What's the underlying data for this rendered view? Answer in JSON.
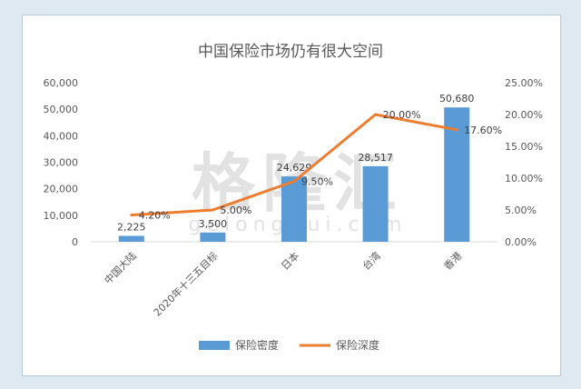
{
  "chart_data": {
    "type": "bar",
    "title": "中国保险市场仍有很大空间",
    "categories": [
      "中国大陆",
      "2020年十三五目标",
      "日本",
      "台湾",
      "香港"
    ],
    "series": [
      {
        "name": "保险密度",
        "type": "bar",
        "axis": "left",
        "values": [
          2225,
          3500,
          24629,
          28517,
          50680
        ],
        "labels": [
          "2,225",
          "3,500",
          "24,629",
          "28,517",
          "50,680"
        ],
        "color": "#5b9bd5"
      },
      {
        "name": "保险深度",
        "type": "line",
        "axis": "right",
        "values": [
          4.2,
          5.0,
          9.5,
          20.0,
          17.6
        ],
        "labels": [
          "4.20%",
          "5.00%",
          "9.50%",
          "20.00%",
          "17.60%"
        ],
        "color": "#ed7d31"
      }
    ],
    "y_left": {
      "min": 0,
      "max": 60000,
      "ticks": [
        "0",
        "10,000",
        "20,000",
        "30,000",
        "40,000",
        "50,000",
        "60,000"
      ]
    },
    "y_right": {
      "min": 0,
      "max": 25,
      "ticks": [
        "0.00%",
        "5.00%",
        "10.00%",
        "15.00%",
        "20.00%",
        "25.00%"
      ]
    },
    "grid": false,
    "legend_position": "bottom"
  },
  "watermark": {
    "text": "格隆汇",
    "subtext": "gelonghui.com"
  }
}
